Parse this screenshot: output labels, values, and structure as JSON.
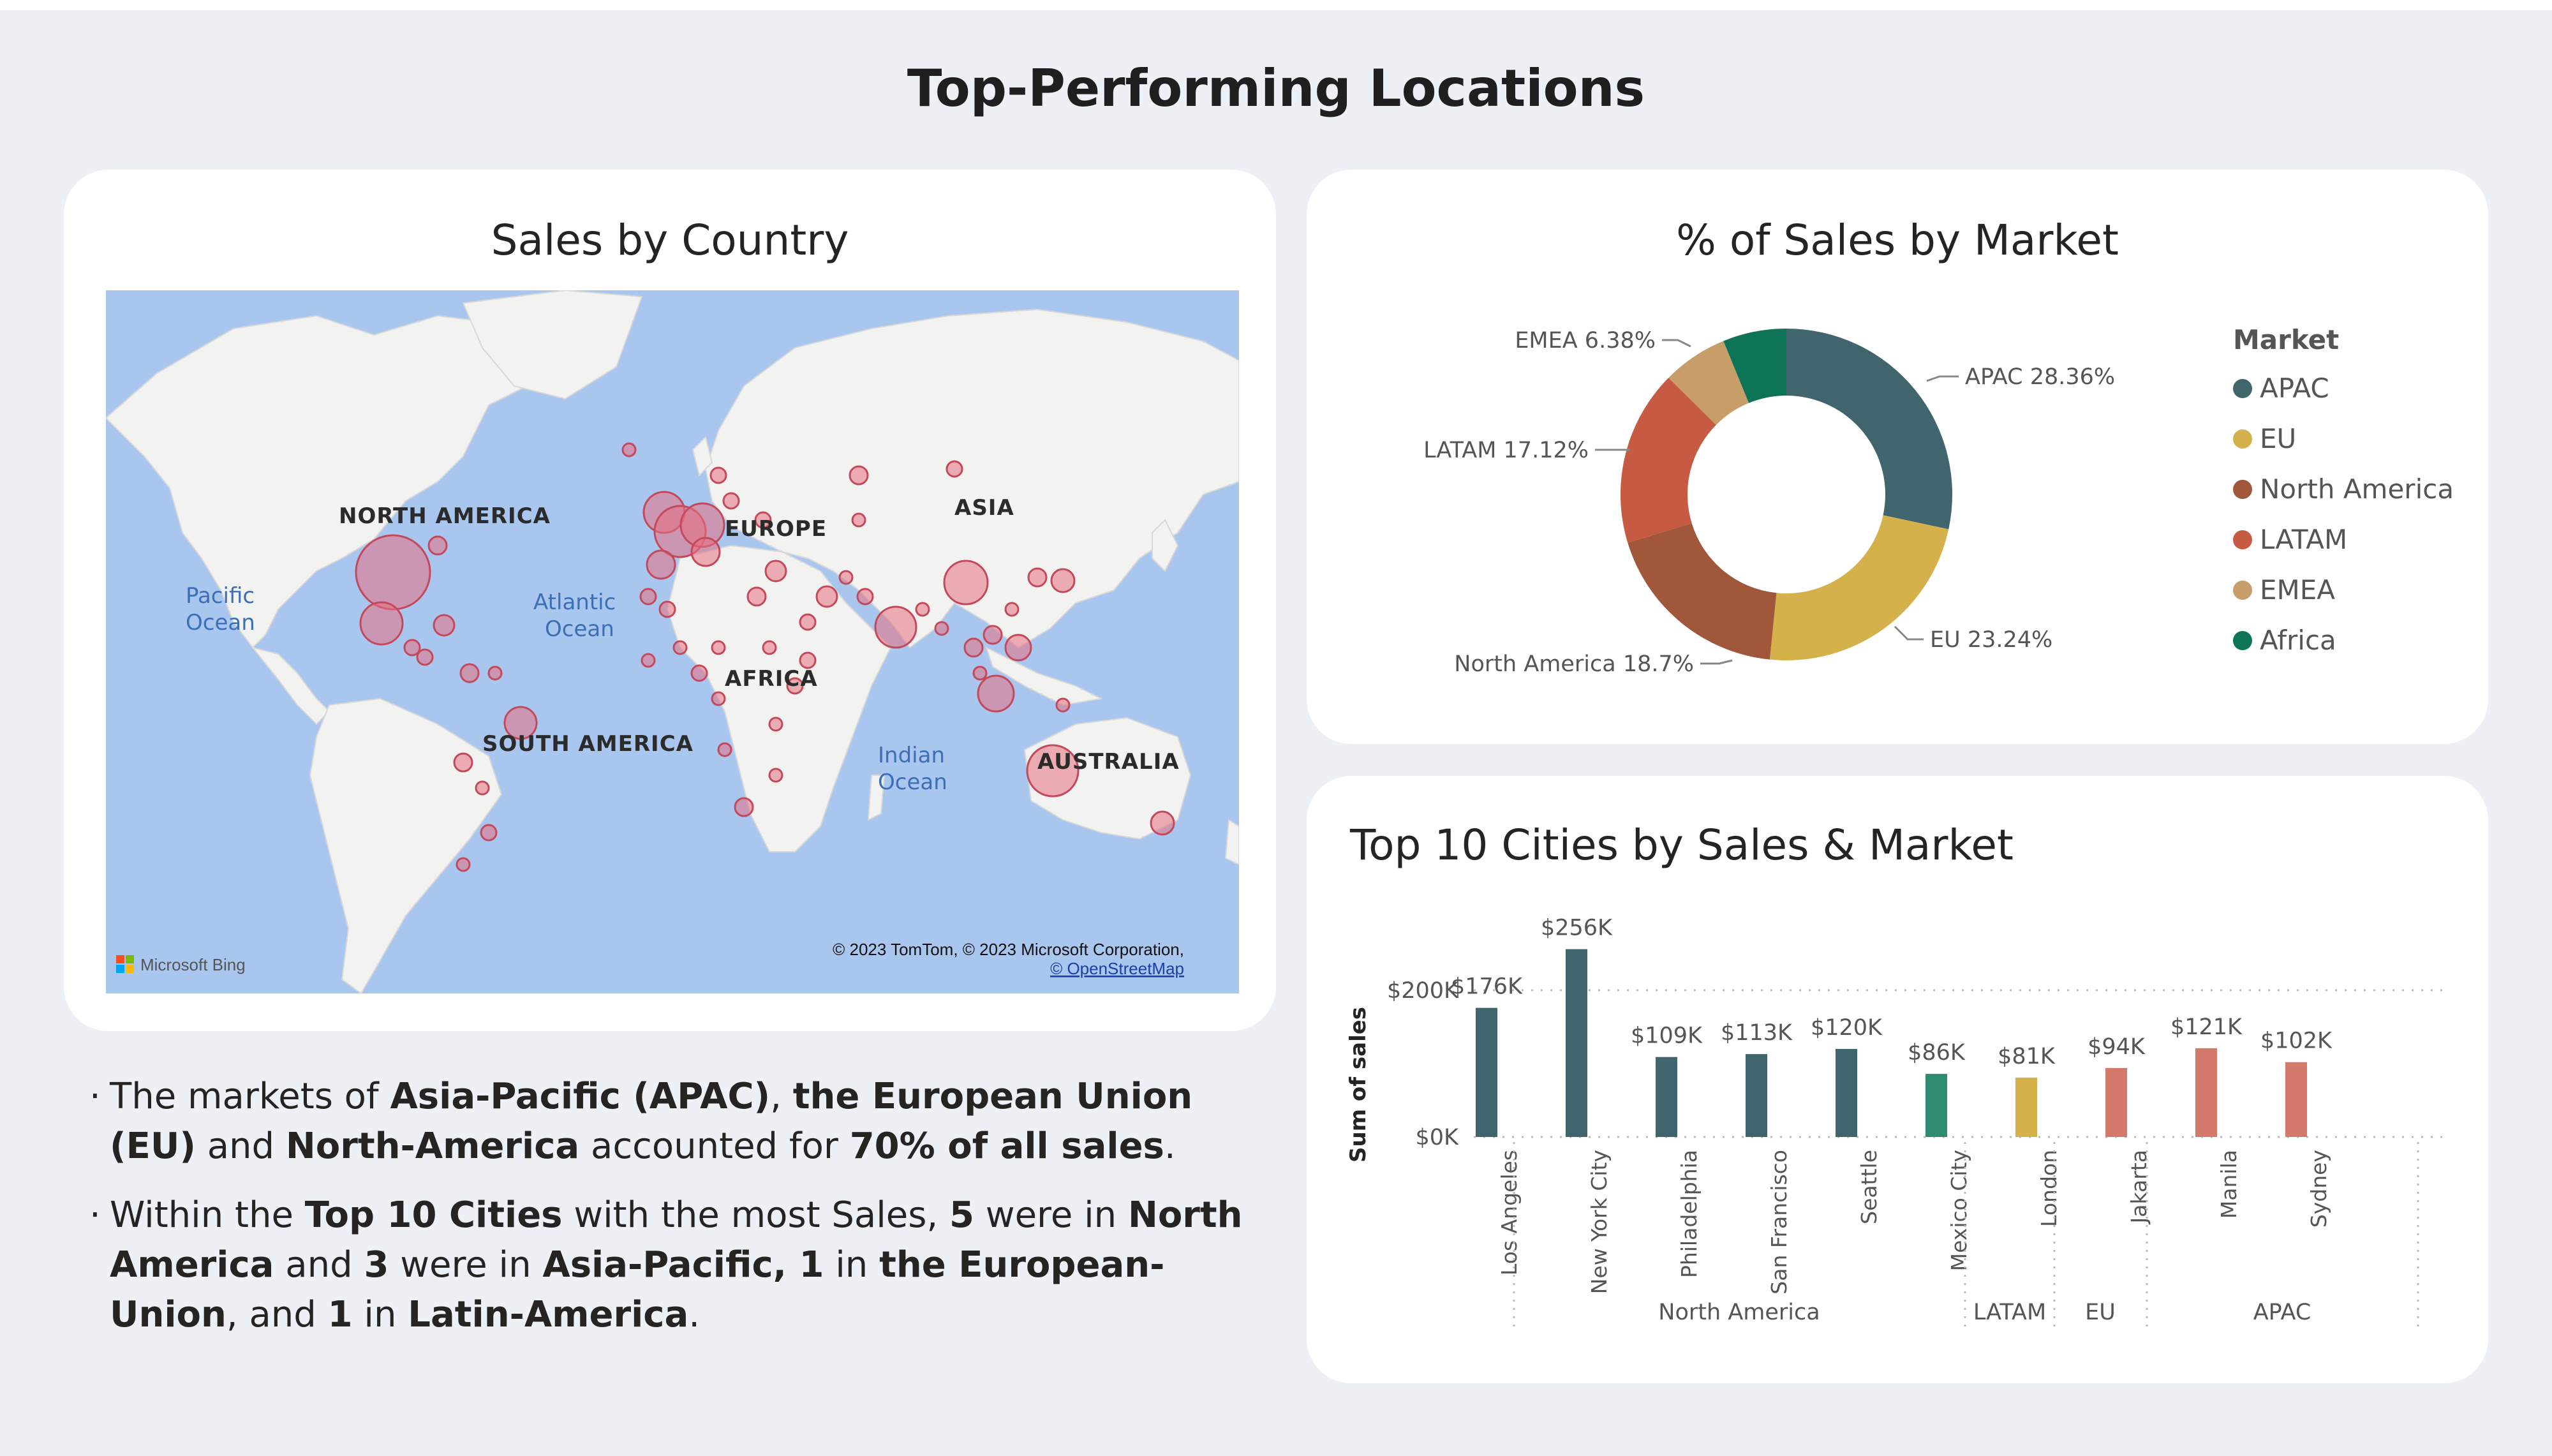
{
  "page_title": "Top-Performing Locations",
  "map_card": {
    "title": "Sales by Country",
    "regions": [
      "NORTH AMERICA",
      "EUROPE",
      "ASIA",
      "AFRICA",
      "SOUTH AMERICA",
      "AUSTRALIA"
    ],
    "oceans": [
      "Pacific",
      "Ocean",
      "Atlantic",
      "Ocean",
      "Indian",
      "Ocean"
    ],
    "attribution": "© 2023 TomTom, © 2023 Microsoft Corporation,",
    "attribution_link": "© OpenStreetMap",
    "bing": "Microsoft Bing",
    "colors": {
      "water": "#a9c6ef",
      "land": "#f2f2f0",
      "bubble": "#e8707f"
    }
  },
  "donut_card": {
    "title": "% of Sales by Market",
    "labels": {
      "apac": "APAC 28.36%",
      "eu": "EU 23.24%",
      "na": "North America 18.7%",
      "latam": "LATAM 17.12%",
      "emea": "EMEA 6.38%"
    },
    "legend_title": "Market",
    "legend": [
      "APAC",
      "EU",
      "North America",
      "LATAM",
      "EMEA",
      "Africa"
    ]
  },
  "bar_card": {
    "title": "Top 10 Cities by Sales & Market",
    "y_title": "Sum of sales",
    "y_ticks": [
      "$200K",
      "$0K"
    ],
    "groups": [
      "North America",
      "LATAM",
      "EU",
      "APAC"
    ]
  },
  "chart_data": [
    {
      "type": "pie",
      "title": "% of Sales by Market",
      "categories": [
        "APAC",
        "EU",
        "North America",
        "LATAM",
        "EMEA",
        "Africa"
      ],
      "values": [
        28.36,
        23.24,
        18.7,
        17.12,
        6.38,
        6.2
      ],
      "colors": [
        "#41656d",
        "#d4b14a",
        "#a0573a",
        "#c75a42",
        "#c79d6a",
        "#0d7457"
      ],
      "legend": "right"
    },
    {
      "type": "bar",
      "title": "Top 10 Cities by Sales & Market",
      "ylabel": "Sum of sales",
      "ylim": [
        0,
        270000
      ],
      "categories": [
        "Los Angeles",
        "New York City",
        "Philadelphia",
        "San Francisco",
        "Seattle",
        "Mexico City",
        "London",
        "Jakarta",
        "Manila",
        "Sydney"
      ],
      "groups": [
        "North America",
        "North America",
        "North America",
        "North America",
        "North America",
        "LATAM",
        "EU",
        "APAC",
        "APAC",
        "APAC"
      ],
      "values": [
        176000,
        256000,
        109000,
        113000,
        120000,
        86000,
        81000,
        94000,
        121000,
        102000
      ],
      "data_labels": [
        "$176K",
        "$256K",
        "$109K",
        "$113K",
        "$120K",
        "$86K",
        "$81K",
        "$94K",
        "$121K",
        "$102K"
      ],
      "colors": [
        "#41656d",
        "#41656d",
        "#41656d",
        "#41656d",
        "#41656d",
        "#2f8c70",
        "#d4b14a",
        "#d47a6a",
        "#d47a6a",
        "#d47a6a"
      ],
      "grid": true
    }
  ],
  "notes": [
    {
      "parts": [
        {
          "t": "The markets of ",
          "b": false
        },
        {
          "t": "Asia-Pacific (APAC)",
          "b": true
        },
        {
          "t": ", ",
          "b": false
        },
        {
          "t": "the European Union (EU)",
          "b": true
        },
        {
          "t": " and ",
          "b": false
        },
        {
          "t": "North-America",
          "b": true
        },
        {
          "t": " accounted for ",
          "b": false
        },
        {
          "t": "70% of all sales",
          "b": true
        },
        {
          "t": ".",
          "b": false
        }
      ]
    },
    {
      "parts": [
        {
          "t": "Within the ",
          "b": false
        },
        {
          "t": "Top 10 Cities",
          "b": true
        },
        {
          "t": " with the most Sales, ",
          "b": false
        },
        {
          "t": "5",
          "b": true
        },
        {
          "t": " were in ",
          "b": false
        },
        {
          "t": "North America",
          "b": true
        },
        {
          "t": " and ",
          "b": false
        },
        {
          "t": "3",
          "b": true
        },
        {
          "t": " were in ",
          "b": false
        },
        {
          "t": "Asia-Pacific, 1",
          "b": true
        },
        {
          "t": " in ",
          "b": false
        },
        {
          "t": "the European-Union",
          "b": true
        },
        {
          "t": ", and ",
          "b": false
        },
        {
          "t": "1",
          "b": true
        },
        {
          "t": " in ",
          "b": false
        },
        {
          "t": "Latin-America",
          "b": true
        },
        {
          "t": ".",
          "b": false
        }
      ]
    }
  ]
}
